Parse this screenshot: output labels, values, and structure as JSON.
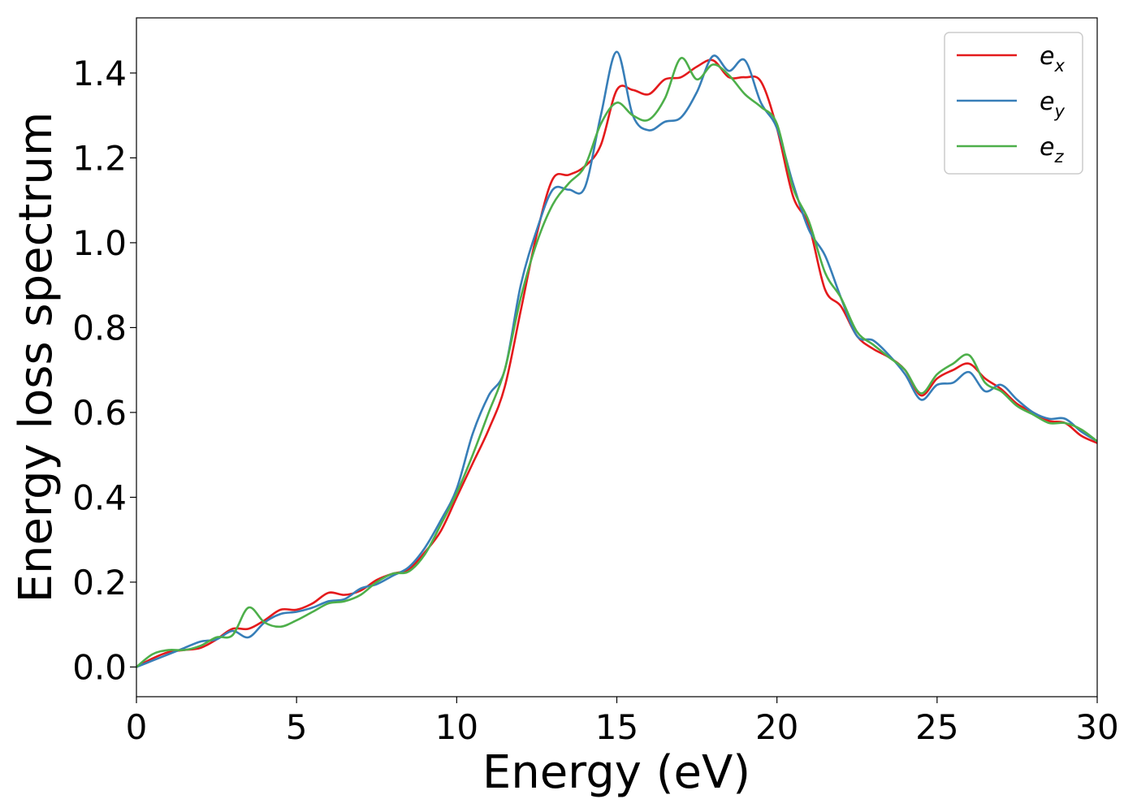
{
  "chart_data": {
    "type": "line",
    "title": "",
    "xlabel": "Energy (eV)",
    "ylabel": "Energy loss spectrum",
    "xlim": [
      0,
      30
    ],
    "ylim": [
      -0.07,
      1.53
    ],
    "xticks": [
      0,
      5,
      10,
      15,
      20,
      25,
      30
    ],
    "xtick_labels": [
      "0",
      "5",
      "10",
      "15",
      "20",
      "25",
      "30"
    ],
    "yticks": [
      0.0,
      0.2,
      0.4,
      0.6,
      0.8,
      1.0,
      1.2,
      1.4
    ],
    "ytick_labels": [
      "0.0",
      "0.2",
      "0.4",
      "0.6",
      "0.8",
      "1.0",
      "1.2",
      "1.4"
    ],
    "grid": false,
    "legend_position": "top-right",
    "series": [
      {
        "name": "e",
        "subscript": "x",
        "color": "#e41a1c",
        "x": [
          0,
          0.5,
          1,
          1.5,
          2,
          2.5,
          3,
          3.5,
          4,
          4.5,
          5,
          5.5,
          6,
          6.5,
          7,
          7.5,
          8,
          8.5,
          9,
          9.5,
          10,
          10.5,
          11,
          11.5,
          12,
          12.5,
          13,
          13.5,
          14,
          14.5,
          15,
          15.5,
          16,
          16.5,
          17,
          17.5,
          18,
          18.5,
          19,
          19.5,
          20,
          20.5,
          21,
          21.5,
          22,
          22.5,
          23,
          23.5,
          24,
          24.5,
          25,
          25.5,
          26,
          26.5,
          27,
          27.5,
          28,
          28.5,
          29,
          29.5,
          30
        ],
        "y": [
          0.0,
          0.02,
          0.035,
          0.04,
          0.045,
          0.065,
          0.09,
          0.09,
          0.11,
          0.135,
          0.135,
          0.15,
          0.175,
          0.17,
          0.18,
          0.205,
          0.22,
          0.23,
          0.27,
          0.32,
          0.4,
          0.48,
          0.56,
          0.66,
          0.84,
          1.02,
          1.15,
          1.16,
          1.18,
          1.23,
          1.36,
          1.36,
          1.35,
          1.385,
          1.39,
          1.415,
          1.43,
          1.39,
          1.39,
          1.38,
          1.27,
          1.11,
          1.04,
          0.89,
          0.85,
          0.78,
          0.75,
          0.73,
          0.7,
          0.64,
          0.68,
          0.7,
          0.715,
          0.68,
          0.655,
          0.62,
          0.6,
          0.58,
          0.575,
          0.545,
          0.528
        ]
      },
      {
        "name": "e",
        "subscript": "y",
        "color": "#377eb8",
        "x": [
          0,
          0.5,
          1,
          1.5,
          2,
          2.5,
          3,
          3.5,
          4,
          4.5,
          5,
          5.5,
          6,
          6.5,
          7,
          7.5,
          8,
          8.5,
          9,
          9.5,
          10,
          10.5,
          11,
          11.5,
          12,
          12.5,
          13,
          13.5,
          14,
          14.5,
          15,
          15.5,
          16,
          16.5,
          17,
          17.5,
          18,
          18.5,
          19,
          19.5,
          20,
          20.5,
          21,
          21.5,
          22,
          22.5,
          23,
          23.5,
          24,
          24.5,
          25,
          25.5,
          26,
          26.5,
          27,
          27.5,
          28,
          28.5,
          29,
          29.5,
          30
        ],
        "y": [
          0.0,
          0.015,
          0.03,
          0.045,
          0.06,
          0.065,
          0.085,
          0.07,
          0.105,
          0.125,
          0.13,
          0.14,
          0.155,
          0.16,
          0.185,
          0.195,
          0.215,
          0.235,
          0.28,
          0.345,
          0.42,
          0.55,
          0.64,
          0.7,
          0.9,
          1.03,
          1.125,
          1.125,
          1.13,
          1.3,
          1.45,
          1.3,
          1.265,
          1.285,
          1.295,
          1.355,
          1.44,
          1.405,
          1.43,
          1.33,
          1.27,
          1.14,
          1.03,
          0.97,
          0.87,
          0.78,
          0.77,
          0.735,
          0.69,
          0.63,
          0.665,
          0.67,
          0.695,
          0.65,
          0.665,
          0.63,
          0.6,
          0.585,
          0.585,
          0.555,
          0.532
        ]
      },
      {
        "name": "e",
        "subscript": "z",
        "color": "#4daf4a",
        "x": [
          0,
          0.5,
          1,
          1.5,
          2,
          2.5,
          3,
          3.5,
          4,
          4.5,
          5,
          5.5,
          6,
          6.5,
          7,
          7.5,
          8,
          8.5,
          9,
          9.5,
          10,
          10.5,
          11,
          11.5,
          12,
          12.5,
          13,
          13.5,
          14,
          14.5,
          15,
          15.5,
          16,
          16.5,
          17,
          17.5,
          18,
          18.5,
          19,
          19.5,
          20,
          20.5,
          21,
          21.5,
          22,
          22.5,
          23,
          23.5,
          24,
          24.5,
          25,
          25.5,
          26,
          26.5,
          27,
          27.5,
          28,
          28.5,
          29,
          29.5,
          30
        ],
        "y": [
          0.0,
          0.03,
          0.04,
          0.04,
          0.05,
          0.07,
          0.075,
          0.14,
          0.105,
          0.095,
          0.11,
          0.13,
          0.15,
          0.155,
          0.17,
          0.2,
          0.22,
          0.225,
          0.265,
          0.335,
          0.41,
          0.5,
          0.6,
          0.7,
          0.87,
          1.0,
          1.09,
          1.14,
          1.18,
          1.28,
          1.33,
          1.3,
          1.29,
          1.34,
          1.435,
          1.385,
          1.42,
          1.395,
          1.35,
          1.32,
          1.28,
          1.13,
          1.05,
          0.93,
          0.87,
          0.79,
          0.76,
          0.73,
          0.7,
          0.645,
          0.69,
          0.715,
          0.735,
          0.67,
          0.65,
          0.615,
          0.595,
          0.575,
          0.575,
          0.56,
          0.532
        ]
      }
    ]
  }
}
